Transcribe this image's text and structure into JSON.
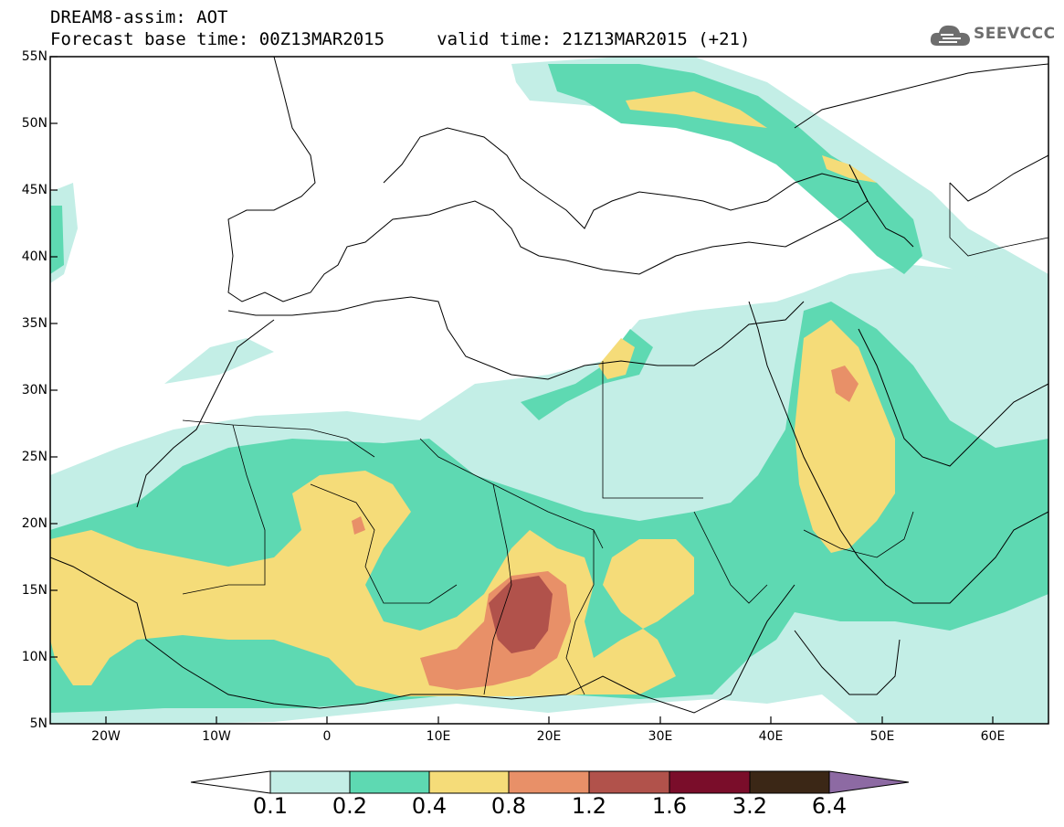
{
  "header": {
    "title_line1": "DREAM8-assim: AOT",
    "title_line2": "Forecast base time: 00Z13MAR2015     valid time: 21Z13MAR2015 (+21)"
  },
  "logo": {
    "text": "SEEVCCC",
    "icon": "cloud-icon"
  },
  "map": {
    "lat_labels": [
      "55N",
      "50N",
      "45N",
      "40N",
      "35N",
      "30N",
      "25N",
      "20N",
      "15N",
      "10N",
      "5N"
    ],
    "lon_labels": [
      "20W",
      "10W",
      "0",
      "10E",
      "20E",
      "30E",
      "40E",
      "50E",
      "60E"
    ],
    "extent": {
      "lon_min": -25,
      "lon_max": 65,
      "lat_min": 5,
      "lat_max": 55
    },
    "field": "AOT (aerosol optical thickness)"
  },
  "colorbar": {
    "levels": [
      "0.1",
      "0.2",
      "0.4",
      "0.8",
      "1.2",
      "1.6",
      "3.2",
      "6.4"
    ],
    "colors": [
      "#ffffff",
      "#c3eee6",
      "#5ed9b2",
      "#f5dc79",
      "#e89068",
      "#b1524b",
      "#7a0d2a",
      "#3b2716",
      "#8d6aa3"
    ]
  }
}
